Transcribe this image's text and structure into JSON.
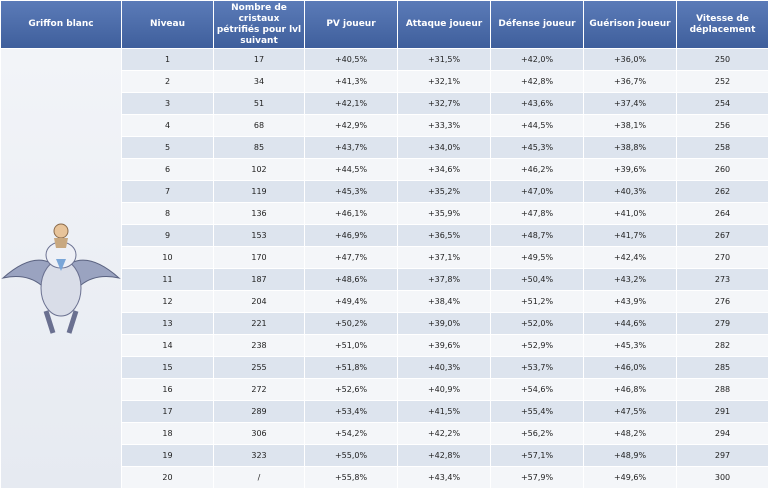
{
  "table": {
    "header": [
      "Griffon blanc",
      "Niveau",
      "Nombre de cristaux pétrifiés pour lvl suivant",
      "PV joueur",
      "Attaque joueur",
      "Défense joueur",
      "Guérison joueur",
      "Vitesse de déplacement"
    ],
    "rows": [
      [
        "1",
        "17",
        "+40,5%",
        "+31,5%",
        "+42,0%",
        "+36,0%",
        "250"
      ],
      [
        "2",
        "34",
        "+41,3%",
        "+32,1%",
        "+42,8%",
        "+36,7%",
        "252"
      ],
      [
        "3",
        "51",
        "+42,1%",
        "+32,7%",
        "+43,6%",
        "+37,4%",
        "254"
      ],
      [
        "4",
        "68",
        "+42,9%",
        "+33,3%",
        "+44,5%",
        "+38,1%",
        "256"
      ],
      [
        "5",
        "85",
        "+43,7%",
        "+34,0%",
        "+45,3%",
        "+38,8%",
        "258"
      ],
      [
        "6",
        "102",
        "+44,5%",
        "+34,6%",
        "+46,2%",
        "+39,6%",
        "260"
      ],
      [
        "7",
        "119",
        "+45,3%",
        "+35,2%",
        "+47,0%",
        "+40,3%",
        "262"
      ],
      [
        "8",
        "136",
        "+46,1%",
        "+35,9%",
        "+47,8%",
        "+41,0%",
        "264"
      ],
      [
        "9",
        "153",
        "+46,9%",
        "+36,5%",
        "+48,7%",
        "+41,7%",
        "267"
      ],
      [
        "10",
        "170",
        "+47,7%",
        "+37,1%",
        "+49,5%",
        "+42,4%",
        "270"
      ],
      [
        "11",
        "187",
        "+48,6%",
        "+37,8%",
        "+50,4%",
        "+43,2%",
        "273"
      ],
      [
        "12",
        "204",
        "+49,4%",
        "+38,4%",
        "+51,2%",
        "+43,9%",
        "276"
      ],
      [
        "13",
        "221",
        "+50,2%",
        "+39,0%",
        "+52,0%",
        "+44,6%",
        "279"
      ],
      [
        "14",
        "238",
        "+51,0%",
        "+39,6%",
        "+52,9%",
        "+45,3%",
        "282"
      ],
      [
        "15",
        "255",
        "+51,8%",
        "+40,3%",
        "+53,7%",
        "+46,0%",
        "285"
      ],
      [
        "16",
        "272",
        "+52,6%",
        "+40,9%",
        "+54,6%",
        "+46,8%",
        "288"
      ],
      [
        "17",
        "289",
        "+53,4%",
        "+41,5%",
        "+55,4%",
        "+47,5%",
        "291"
      ],
      [
        "18",
        "306",
        "+54,2%",
        "+42,2%",
        "+56,2%",
        "+48,2%",
        "294"
      ],
      [
        "19",
        "323",
        "+55,0%",
        "+42,8%",
        "+57,1%",
        "+48,9%",
        "297"
      ],
      [
        "20",
        "/",
        "+55,8%",
        "+43,4%",
        "+57,9%",
        "+49,6%",
        "300"
      ]
    ]
  }
}
